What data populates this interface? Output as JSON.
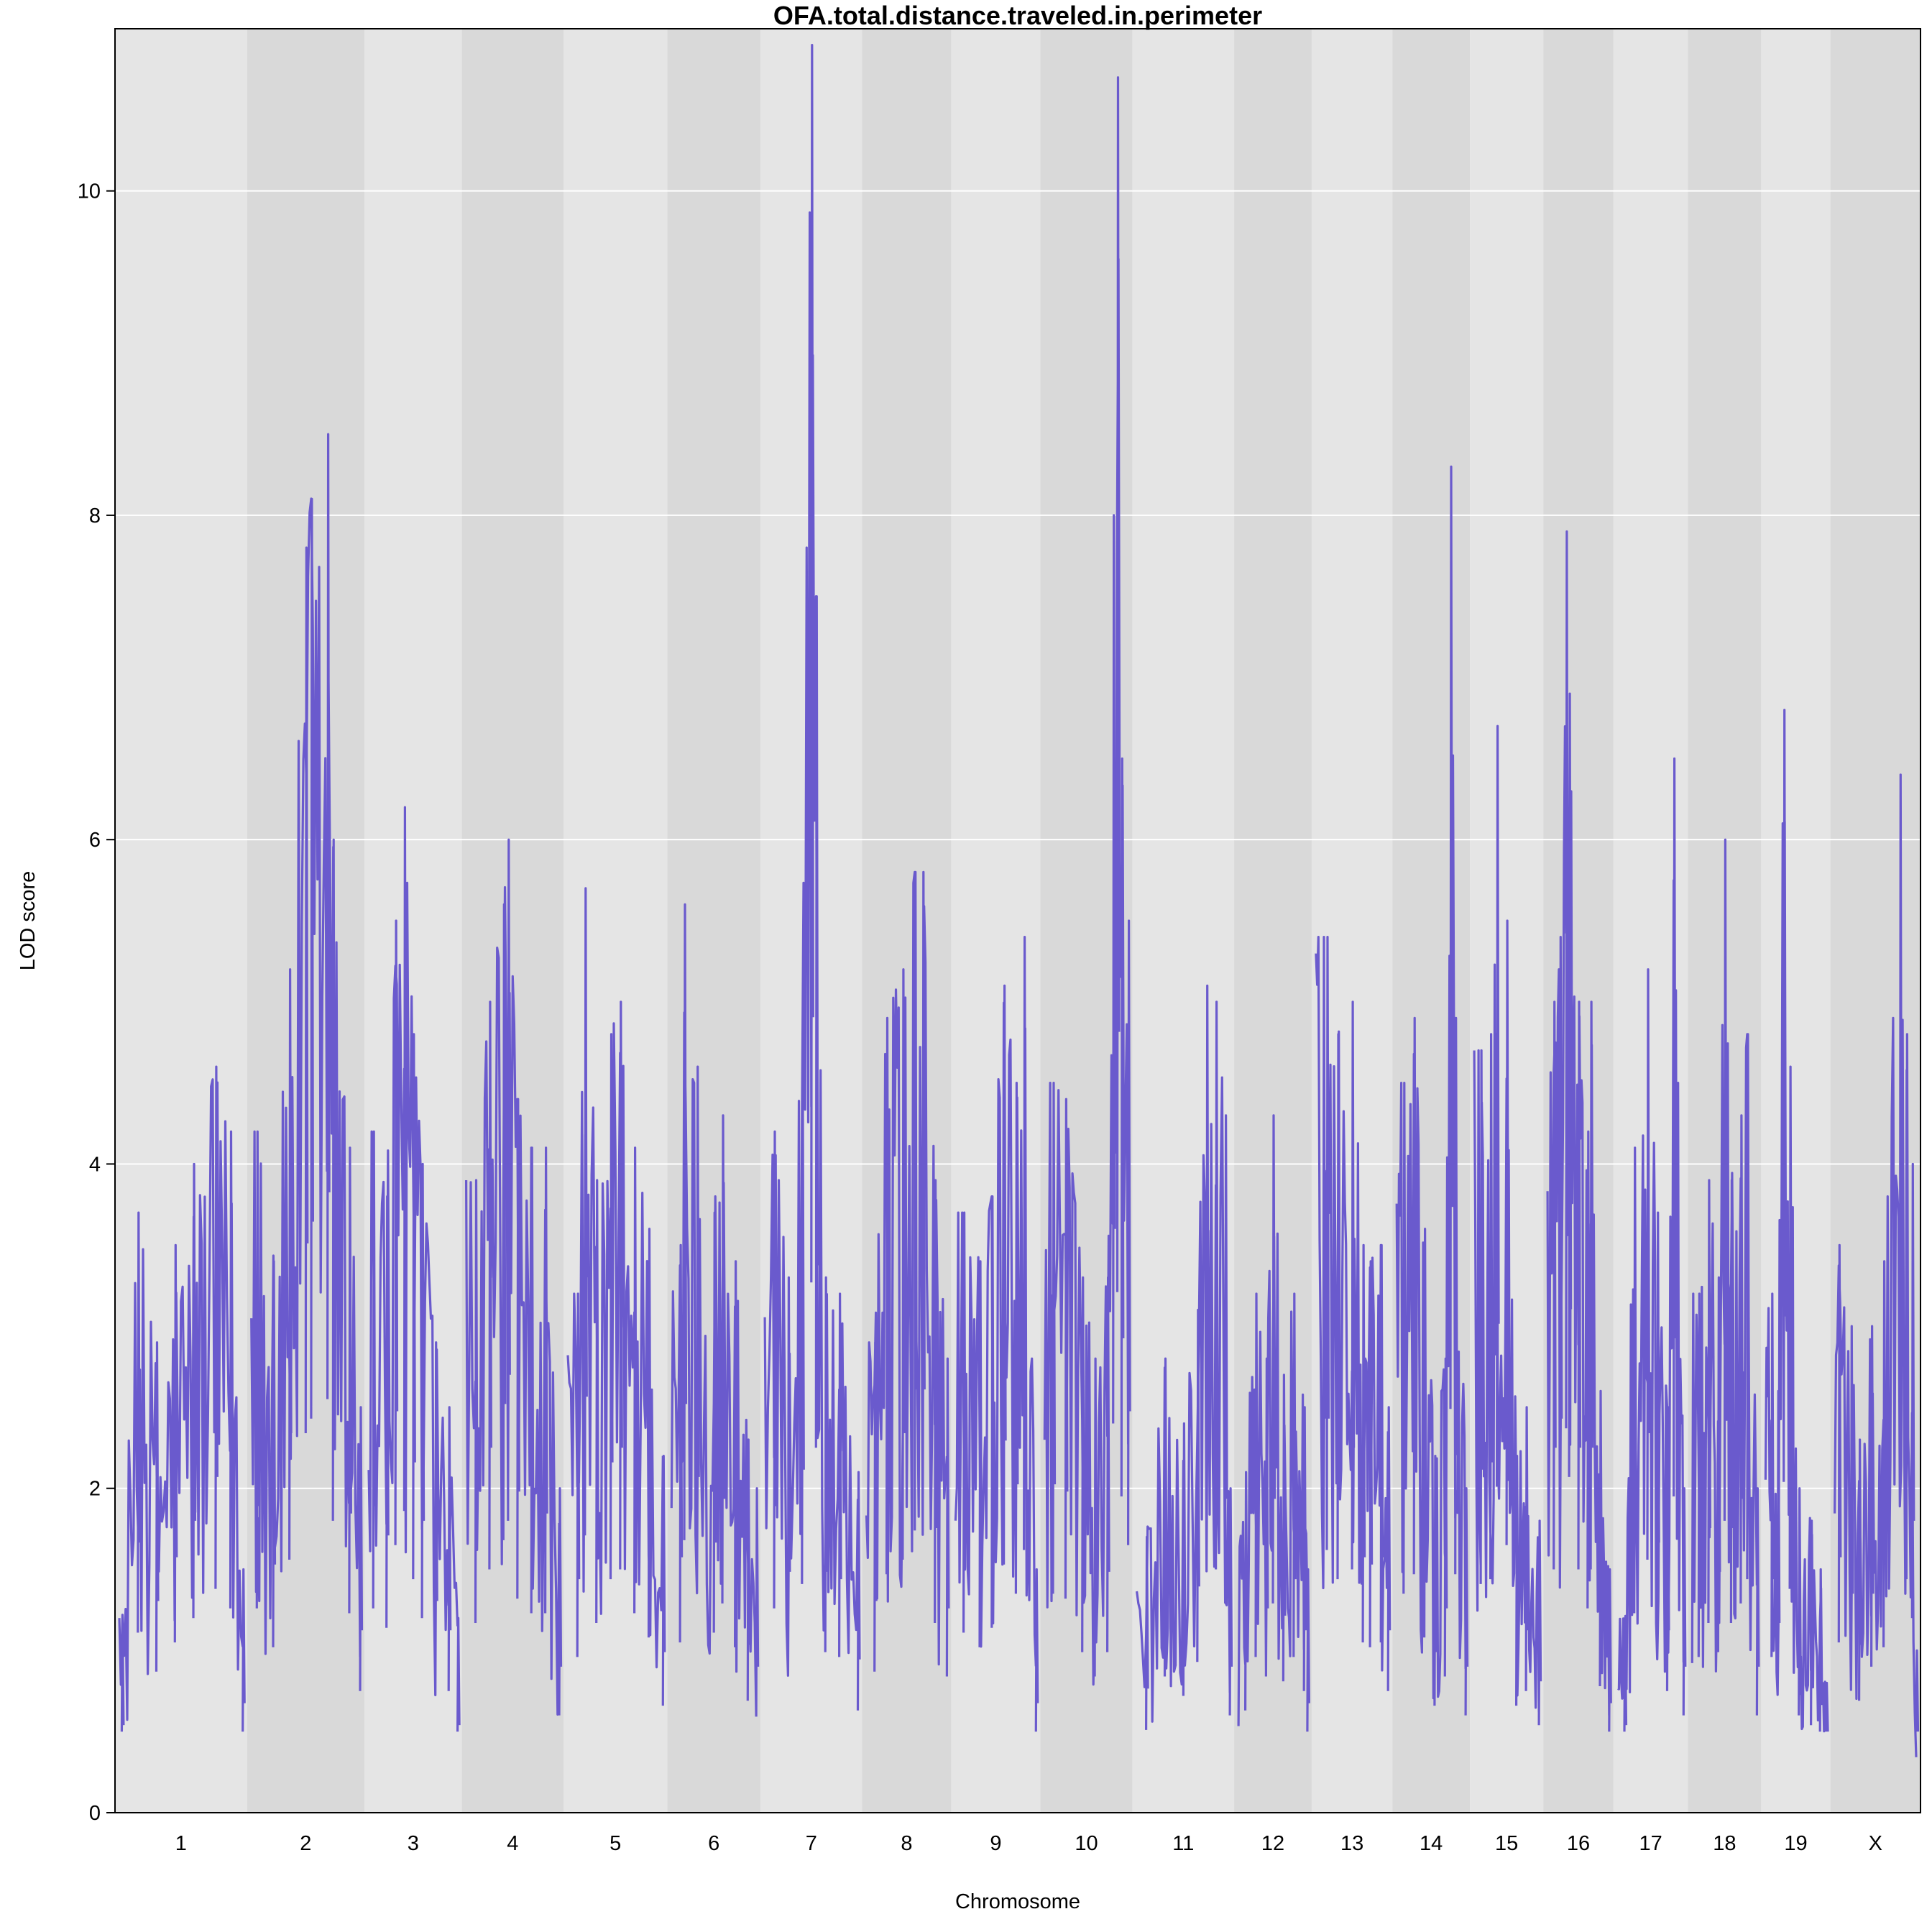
{
  "chart_data": {
    "type": "line",
    "title": "OFA.total.distance.traveled.in.perimeter",
    "xlabel": "Chromosome",
    "ylabel": "LOD score",
    "ylim": [
      0,
      11
    ],
    "y_ticks": [
      0,
      2,
      4,
      6,
      8,
      10
    ],
    "grid": true,
    "line_color": "#6A5ACD",
    "band_colors": [
      "#E5E5E5",
      "#D9D9D9"
    ],
    "gridline_color": "#FFFFFF",
    "chromosomes": [
      {
        "label": "1",
        "peaks": [
          [
            0.02,
            1.2
          ],
          [
            0.15,
            3.7
          ],
          [
            0.3,
            2.9
          ],
          [
            0.45,
            3.5
          ],
          [
            0.6,
            4.0
          ],
          [
            0.78,
            4.6
          ],
          [
            0.9,
            4.2
          ],
          [
            1.0,
            1.5
          ]
        ]
      },
      {
        "label": "2",
        "peaks": [
          [
            0.05,
            4.2
          ],
          [
            0.2,
            3.4
          ],
          [
            0.35,
            5.2
          ],
          [
            0.5,
            7.8
          ],
          [
            0.55,
            8.1
          ],
          [
            0.7,
            8.5
          ],
          [
            0.75,
            6.0
          ],
          [
            0.9,
            4.1
          ],
          [
            1.0,
            2.5
          ]
        ]
      },
      {
        "label": "3",
        "peaks": [
          [
            0.05,
            4.2
          ],
          [
            0.2,
            3.8
          ],
          [
            0.3,
            5.5
          ],
          [
            0.4,
            6.2
          ],
          [
            0.5,
            4.8
          ],
          [
            0.6,
            4.0
          ],
          [
            0.75,
            2.9
          ],
          [
            0.9,
            2.5
          ],
          [
            1.0,
            1.2
          ]
        ]
      },
      {
        "label": "4",
        "peaks": [
          [
            0.1,
            3.9
          ],
          [
            0.25,
            5.0
          ],
          [
            0.4,
            5.6
          ],
          [
            0.45,
            6.0
          ],
          [
            0.55,
            4.4
          ],
          [
            0.7,
            4.1
          ],
          [
            0.85,
            4.1
          ],
          [
            1.0,
            2.0
          ]
        ]
      },
      {
        "label": "5",
        "peaks": [
          [
            0.1,
            3.2
          ],
          [
            0.18,
            5.7
          ],
          [
            0.3,
            3.9
          ],
          [
            0.45,
            4.8
          ],
          [
            0.55,
            5.0
          ],
          [
            0.7,
            4.1
          ],
          [
            0.85,
            3.6
          ],
          [
            1.0,
            2.2
          ]
        ]
      },
      {
        "label": "6",
        "peaks": [
          [
            0.1,
            3.5
          ],
          [
            0.15,
            5.6
          ],
          [
            0.3,
            4.6
          ],
          [
            0.5,
            3.7
          ],
          [
            0.6,
            4.3
          ],
          [
            0.75,
            3.4
          ],
          [
            0.9,
            2.3
          ],
          [
            1.0,
            2.0
          ]
        ]
      },
      {
        "label": "7",
        "peaks": [
          [
            0.1,
            4.2
          ],
          [
            0.25,
            3.3
          ],
          [
            0.4,
            4.7
          ],
          [
            0.5,
            10.9
          ],
          [
            0.55,
            7.5
          ],
          [
            0.65,
            3.3
          ],
          [
            0.8,
            3.2
          ],
          [
            1.0,
            2.1
          ]
        ]
      },
      {
        "label": "8",
        "peaks": [
          [
            0.1,
            2.9
          ],
          [
            0.25,
            4.9
          ],
          [
            0.45,
            5.2
          ],
          [
            0.6,
            5.8
          ],
          [
            0.7,
            5.8
          ],
          [
            0.85,
            3.9
          ],
          [
            1.0,
            2.8
          ]
        ]
      },
      {
        "label": "9",
        "peaks": [
          [
            0.1,
            3.7
          ],
          [
            0.3,
            3.4
          ],
          [
            0.45,
            3.8
          ],
          [
            0.6,
            5.1
          ],
          [
            0.75,
            4.5
          ],
          [
            0.85,
            5.4
          ],
          [
            1.0,
            1.5
          ]
        ]
      },
      {
        "label": "10",
        "peaks": [
          [
            0.1,
            4.5
          ],
          [
            0.25,
            4.4
          ],
          [
            0.45,
            3.3
          ],
          [
            0.6,
            2.8
          ],
          [
            0.75,
            3.3
          ],
          [
            0.82,
            8.0
          ],
          [
            0.87,
            10.7
          ],
          [
            0.92,
            6.5
          ],
          [
            1.0,
            5.5
          ]
        ]
      },
      {
        "label": "11",
        "peaks": [
          [
            0.1,
            1.7
          ],
          [
            0.3,
            2.8
          ],
          [
            0.5,
            2.4
          ],
          [
            0.65,
            3.1
          ],
          [
            0.75,
            5.1
          ],
          [
            0.85,
            5.0
          ],
          [
            0.95,
            4.3
          ],
          [
            1.0,
            2.0
          ]
        ]
      },
      {
        "label": "12",
        "peaks": [
          [
            0.1,
            2.1
          ],
          [
            0.25,
            3.2
          ],
          [
            0.4,
            2.8
          ],
          [
            0.5,
            4.3
          ],
          [
            0.65,
            2.7
          ],
          [
            0.8,
            3.2
          ],
          [
            0.95,
            2.5
          ],
          [
            1.0,
            1.5
          ]
        ]
      },
      {
        "label": "13",
        "peaks": [
          [
            0.1,
            5.4
          ],
          [
            0.15,
            5.4
          ],
          [
            0.3,
            4.8
          ],
          [
            0.5,
            5.0
          ],
          [
            0.65,
            3.5
          ],
          [
            0.75,
            3.4
          ],
          [
            0.9,
            3.5
          ],
          [
            1.0,
            2.5
          ]
        ]
      },
      {
        "label": "14",
        "peaks": [
          [
            0.1,
            4.5
          ],
          [
            0.25,
            4.9
          ],
          [
            0.4,
            3.6
          ],
          [
            0.55,
            2.2
          ],
          [
            0.7,
            2.8
          ],
          [
            0.78,
            8.3
          ],
          [
            0.85,
            4.9
          ],
          [
            1.0,
            2.0
          ]
        ]
      },
      {
        "label": "15",
        "peaks": [
          [
            0.1,
            4.7
          ],
          [
            0.25,
            4.8
          ],
          [
            0.35,
            6.7
          ],
          [
            0.5,
            5.5
          ],
          [
            0.65,
            2.2
          ],
          [
            0.8,
            2.5
          ],
          [
            1.0,
            1.8
          ]
        ]
      },
      {
        "label": "16",
        "peaks": [
          [
            0.1,
            5.0
          ],
          [
            0.2,
            5.4
          ],
          [
            0.3,
            7.9
          ],
          [
            0.35,
            6.9
          ],
          [
            0.5,
            5.0
          ],
          [
            0.65,
            4.2
          ],
          [
            0.7,
            5.0
          ],
          [
            0.85,
            2.6
          ],
          [
            1.0,
            1.5
          ]
        ]
      },
      {
        "label": "17",
        "peaks": [
          [
            0.1,
            1.2
          ],
          [
            0.25,
            4.1
          ],
          [
            0.45,
            5.2
          ],
          [
            0.6,
            3.7
          ],
          [
            0.75,
            2.5
          ],
          [
            0.85,
            6.5
          ],
          [
            1.0,
            2.0
          ]
        ]
      },
      {
        "label": "18",
        "peaks": [
          [
            0.1,
            3.2
          ],
          [
            0.25,
            3.9
          ],
          [
            0.4,
            3.3
          ],
          [
            0.5,
            6.0
          ],
          [
            0.6,
            3.9
          ],
          [
            0.75,
            4.3
          ],
          [
            0.85,
            4.8
          ],
          [
            1.0,
            2.0
          ]
        ]
      },
      {
        "label": "19",
        "peaks": [
          [
            0.1,
            3.2
          ],
          [
            0.2,
            2.6
          ],
          [
            0.3,
            6.8
          ],
          [
            0.4,
            4.6
          ],
          [
            0.55,
            2.0
          ],
          [
            0.75,
            1.8
          ],
          [
            0.9,
            1.5
          ],
          [
            1.0,
            0.8
          ]
        ]
      },
      {
        "label": "X",
        "peaks": [
          [
            0.05,
            3.5
          ],
          [
            0.2,
            3.0
          ],
          [
            0.3,
            2.3
          ],
          [
            0.45,
            3.0
          ],
          [
            0.6,
            3.4
          ],
          [
            0.8,
            6.4
          ],
          [
            0.88,
            4.8
          ],
          [
            0.95,
            4.0
          ],
          [
            1.0,
            1.0
          ]
        ]
      }
    ]
  }
}
